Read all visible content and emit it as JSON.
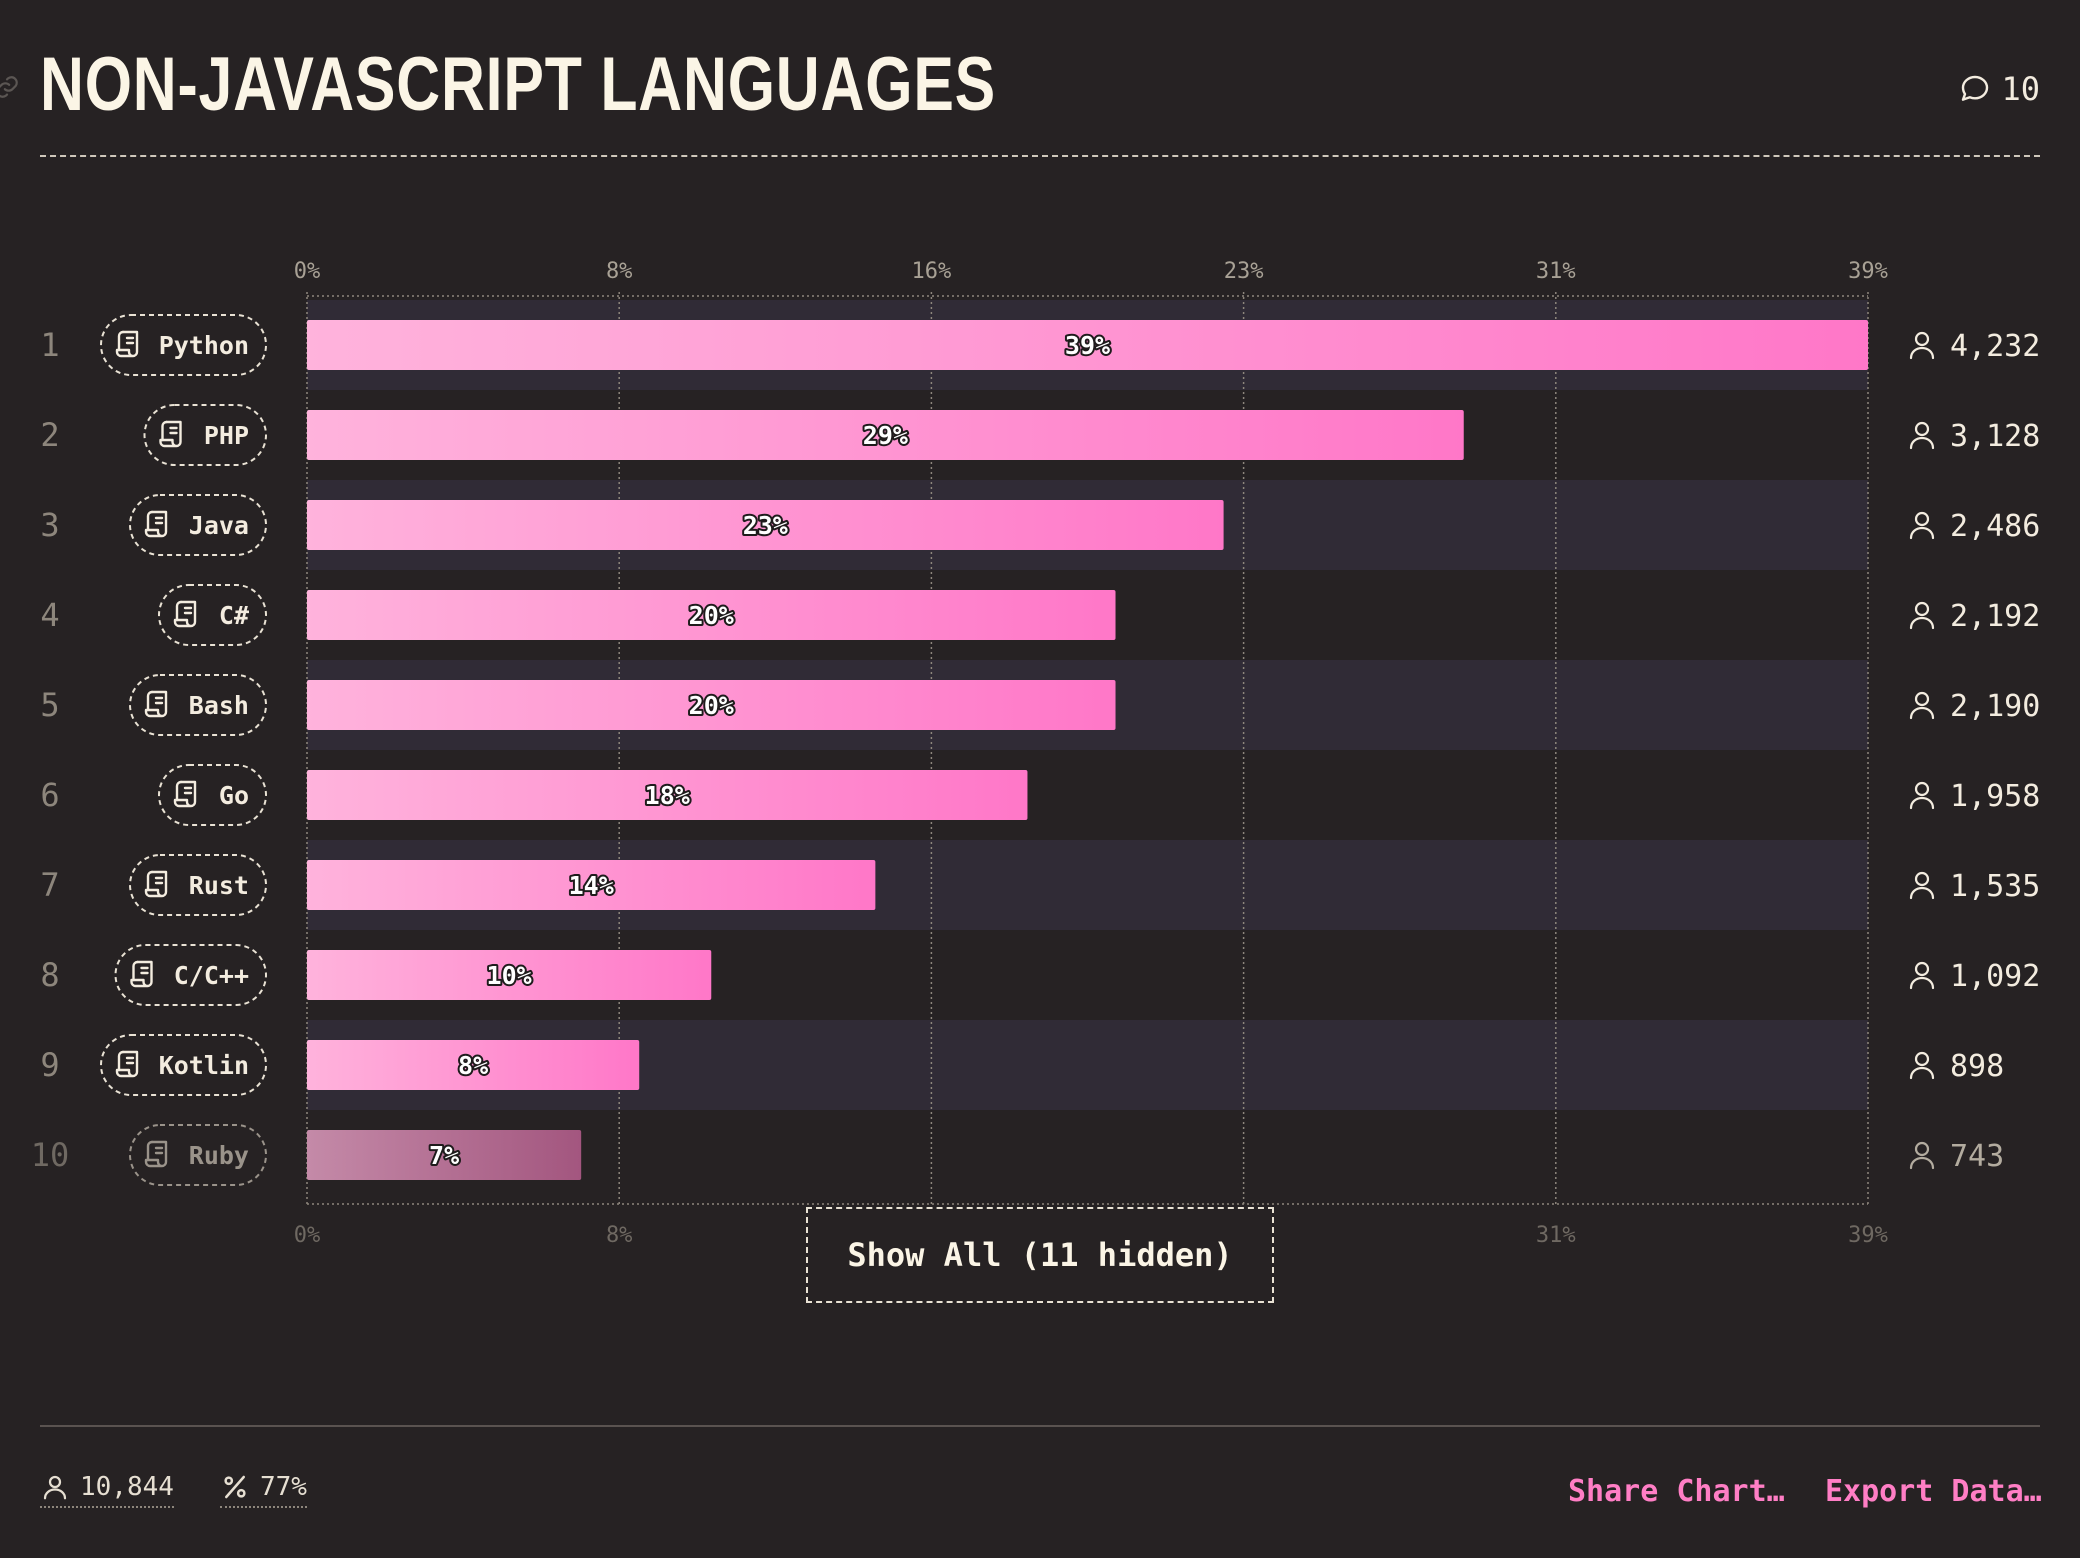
{
  "header": {
    "title": "NON-JAVASCRIPT LANGUAGES",
    "comments_count": "10"
  },
  "chart_data": {
    "type": "bar",
    "orientation": "horizontal",
    "title": "NON-JAVASCRIPT LANGUAGES",
    "x_ticks": [
      "0%",
      "8%",
      "16%",
      "23%",
      "31%",
      "39%"
    ],
    "xlim": [
      0,
      39
    ],
    "rows": [
      {
        "rank": "1",
        "label": "Python",
        "value": 39,
        "value_label": "39%",
        "count": "4,232"
      },
      {
        "rank": "2",
        "label": "PHP",
        "value": 28.9,
        "value_label": "29%",
        "count": "3,128"
      },
      {
        "rank": "3",
        "label": "Java",
        "value": 22.9,
        "value_label": "23%",
        "count": "2,486"
      },
      {
        "rank": "4",
        "label": "C#",
        "value": 20.2,
        "value_label": "20%",
        "count": "2,192"
      },
      {
        "rank": "5",
        "label": "Bash",
        "value": 20.2,
        "value_label": "20%",
        "count": "2,190"
      },
      {
        "rank": "6",
        "label": "Go",
        "value": 18.0,
        "value_label": "18%",
        "count": "1,958"
      },
      {
        "rank": "7",
        "label": "Rust",
        "value": 14.2,
        "value_label": "14%",
        "count": "1,535"
      },
      {
        "rank": "8",
        "label": "C/C++",
        "value": 10.1,
        "value_label": "10%",
        "count": "1,092"
      },
      {
        "rank": "9",
        "label": "Kotlin",
        "value": 8.3,
        "value_label": "8%",
        "count": "898"
      },
      {
        "rank": "10",
        "label": "Ruby",
        "value": 6.85,
        "value_label": "7%",
        "count": "743",
        "muted": true
      }
    ]
  },
  "controls": {
    "show_all": "Show All (11 hidden)"
  },
  "footer": {
    "respondents": "10,844",
    "percent": "77%",
    "share": "Share Chart…",
    "export": "Export Data…"
  },
  "colors": {
    "background": "#262223",
    "band": "#302b36",
    "bar_start": "#ffb3dc",
    "bar_end": "#ff77c8",
    "muted_bar_start": "#c48aa8",
    "muted_bar_end": "#a3567f",
    "accent": "#ff7ec5",
    "text": "#fbf5e6"
  }
}
